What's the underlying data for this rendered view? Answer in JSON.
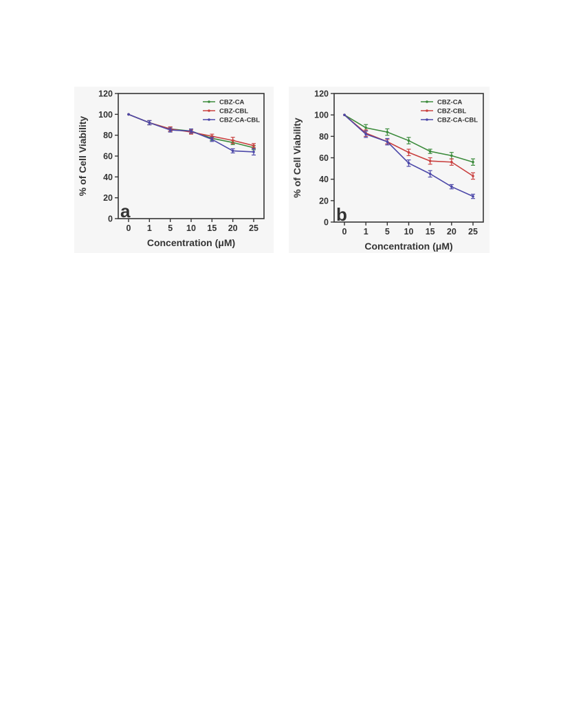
{
  "chart_data": [
    {
      "type": "line",
      "panel_label": "a",
      "xlabel": "Concentration (μM)",
      "ylabel": "% of Cell Viability",
      "categories": [
        "0",
        "1",
        "5",
        "10",
        "15",
        "20",
        "25"
      ],
      "ylim": [
        0,
        120
      ],
      "yticks": [
        "0",
        "20",
        "40",
        "60",
        "80",
        "100",
        "120"
      ],
      "legend_position": "top-right",
      "grid": false,
      "series": [
        {
          "name": "CBZ-CA",
          "color": "#3a8a3a",
          "values": [
            100,
            92,
            86,
            84,
            77,
            73,
            68
          ],
          "errors": [
            0.5,
            2,
            2,
            2,
            2,
            2,
            2
          ]
        },
        {
          "name": "CBZ-CBL",
          "color": "#c9403f",
          "values": [
            100,
            92,
            86,
            83,
            79,
            75,
            70
          ],
          "errors": [
            0.5,
            2,
            2,
            2,
            2,
            3,
            2
          ]
        },
        {
          "name": "CBZ-CA-CBL",
          "color": "#4b47a8",
          "values": [
            100,
            92,
            85,
            84,
            76,
            65,
            64
          ],
          "errors": [
            0.5,
            2,
            2,
            2,
            2,
            2,
            3
          ]
        }
      ]
    },
    {
      "type": "line",
      "panel_label": "b",
      "xlabel": "Concentration (μM)",
      "ylabel": "% of Cell Viability",
      "categories": [
        "0",
        "1",
        "5",
        "10",
        "15",
        "20",
        "25"
      ],
      "ylim": [
        0,
        120
      ],
      "yticks": [
        "0",
        "20",
        "40",
        "60",
        "80",
        "100",
        "120"
      ],
      "legend_position": "top-right",
      "grid": false,
      "series": [
        {
          "name": "CBZ-CA",
          "color": "#3a8a3a",
          "values": [
            100,
            88,
            84,
            76,
            66,
            62,
            56
          ],
          "errors": [
            0.5,
            3,
            3,
            3,
            2,
            3,
            3
          ]
        },
        {
          "name": "CBZ-CBL",
          "color": "#c9403f",
          "values": [
            100,
            83,
            75,
            65,
            57,
            56,
            43
          ],
          "errors": [
            0.5,
            3,
            2,
            3,
            3,
            3,
            3
          ]
        },
        {
          "name": "CBZ-CA-CBL",
          "color": "#4b47a8",
          "values": [
            100,
            82,
            75,
            55,
            45,
            33,
            24
          ],
          "errors": [
            0.5,
            3,
            3,
            3,
            3,
            2,
            2
          ]
        }
      ]
    }
  ]
}
